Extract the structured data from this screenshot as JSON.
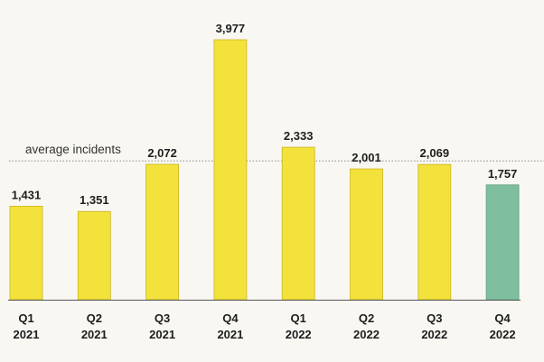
{
  "chart_data": {
    "type": "bar",
    "categories": [
      [
        "Q1",
        "2021"
      ],
      [
        "Q2",
        "2021"
      ],
      [
        "Q3",
        "2021"
      ],
      [
        "Q4",
        "2021"
      ],
      [
        "Q1",
        "2022"
      ],
      [
        "Q2",
        "2022"
      ],
      [
        "Q3",
        "2022"
      ],
      [
        "Q4",
        "2022"
      ]
    ],
    "values": [
      1431,
      1351,
      2072,
      3977,
      2333,
      2001,
      2069,
      1757
    ],
    "value_labels": [
      "1,431",
      "1,351",
      "2,072",
      "3,977",
      "2,333",
      "2,001",
      "2,069",
      "1,757"
    ],
    "ylim": [
      0,
      4000
    ],
    "grid": false,
    "reference_line": {
      "label": "average incidents",
      "value": 2124,
      "style": "dotted"
    },
    "highlight_index": 7,
    "colors": {
      "bar": "#f4e23c",
      "bar_stroke": "#c9b520",
      "highlight": "#7fbf9f",
      "highlight_stroke": "#5f9f7f",
      "baseline": "#555555",
      "reference_line": "#888888"
    }
  }
}
